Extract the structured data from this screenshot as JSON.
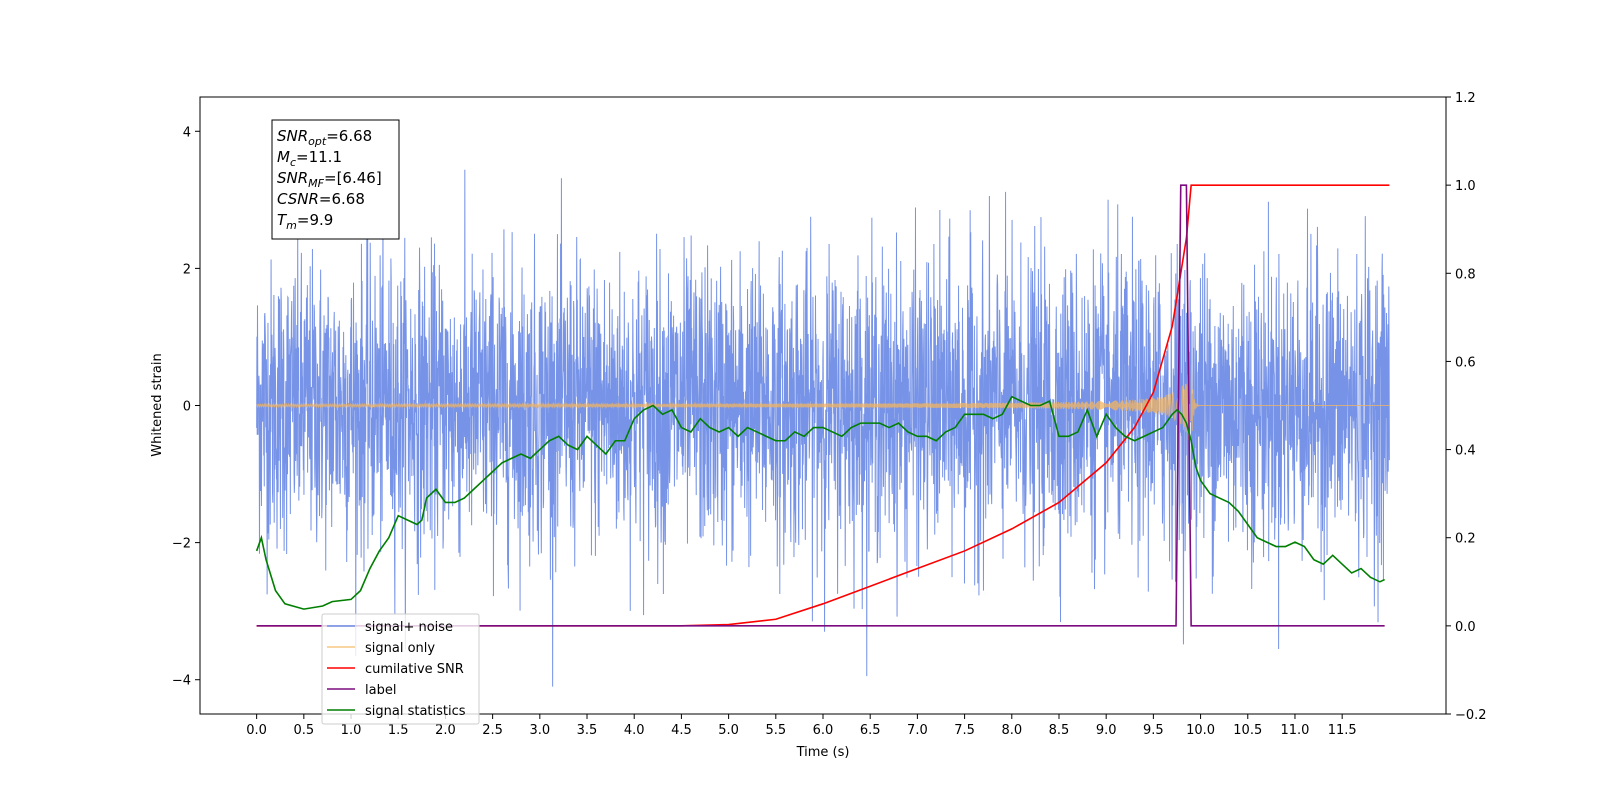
{
  "chart_data": {
    "type": "line",
    "xlabel": "Time (s)",
    "ylabel": "Whitened strain",
    "xlim": [
      -0.6,
      12.6
    ],
    "ylim_left": [
      -4.5,
      4.5
    ],
    "ylim_right": [
      -0.2,
      1.2
    ],
    "x_ticks": [
      0.0,
      0.5,
      1.0,
      1.5,
      2.0,
      2.5,
      3.0,
      3.5,
      4.0,
      4.5,
      5.0,
      5.5,
      6.0,
      6.5,
      7.0,
      7.5,
      8.0,
      8.5,
      9.0,
      9.5,
      10.0,
      10.5,
      11.0,
      11.5
    ],
    "x_tick_labels": [
      "0.0",
      "0.5",
      "1.0",
      "1.5",
      "2.0",
      "2.5",
      "3.0",
      "3.5",
      "4.0",
      "4.5",
      "5.0",
      "5.5",
      "6.0",
      "6.5",
      "7.0",
      "7.5",
      "8.0",
      "8.5",
      "9.0",
      "9.5",
      "10.0",
      "10.5",
      "11.0",
      "11.5"
    ],
    "y_ticks_left": [
      -4,
      -2,
      0,
      2,
      4
    ],
    "y_tick_labels_left": [
      "−4",
      "−2",
      "0",
      "2",
      "4"
    ],
    "y_ticks_right": [
      -0.2,
      0.0,
      0.2,
      0.4,
      0.6,
      0.8,
      1.0,
      1.2
    ],
    "y_tick_labels_right": [
      "−0.2",
      "0.0",
      "0.2",
      "0.4",
      "0.6",
      "0.8",
      "1.0",
      "1.2"
    ],
    "legend_placement": "lower-left",
    "grid": false,
    "annotation": [
      {
        "main": "SNR",
        "sub": "opt",
        "rest": "=6.68"
      },
      {
        "main": "M",
        "sub": "c",
        "rest": "=11.1"
      },
      {
        "main": "SNR",
        "sub": "MF",
        "rest": "=[6.46]"
      },
      {
        "main": "CSNR",
        "sub": "",
        "rest": "=6.68"
      },
      {
        "main": "T",
        "sub": "m",
        "rest": "=9.9"
      }
    ],
    "series": [
      {
        "name": "signal+ noise",
        "axis": "left",
        "color": "#6f8de6",
        "style": "noise",
        "x_range": [
          0.0,
          12.0
        ],
        "y_range": [
          -4.1,
          4.1
        ],
        "envelope_peak_at": 9.9
      },
      {
        "name": "signal only",
        "axis": "left",
        "color": "#f4b45f",
        "style": "chirp",
        "x_range": [
          0.0,
          12.0
        ],
        "peak_time": 9.9,
        "peak_amplitude": 0.75
      },
      {
        "name": "cumilative SNR",
        "axis": "right",
        "color": "#ff0000",
        "x": [
          0.0,
          4.5,
          5.0,
          5.5,
          6.0,
          6.5,
          7.0,
          7.5,
          8.0,
          8.5,
          9.0,
          9.3,
          9.5,
          9.7,
          9.85,
          9.9,
          10.0,
          12.0
        ],
        "y": [
          0.0,
          0.0,
          0.003,
          0.015,
          0.05,
          0.09,
          0.13,
          0.17,
          0.22,
          0.28,
          0.37,
          0.45,
          0.53,
          0.68,
          0.88,
          1.0,
          1.0,
          1.0
        ]
      },
      {
        "name": "label",
        "axis": "right",
        "color": "#7b0b7f",
        "x": [
          0.0,
          9.74,
          9.79,
          9.85,
          9.9,
          11.95
        ],
        "y": [
          0.0,
          0.0,
          1.0,
          1.0,
          0.0,
          0.0
        ]
      },
      {
        "name": "signal statistics",
        "axis": "right",
        "color": "#007f00",
        "x": [
          0.0,
          0.05,
          0.1,
          0.2,
          0.3,
          0.5,
          0.7,
          0.8,
          1.0,
          1.1,
          1.2,
          1.3,
          1.4,
          1.5,
          1.6,
          1.7,
          1.75,
          1.8,
          1.9,
          2.0,
          2.1,
          2.2,
          2.3,
          2.4,
          2.5,
          2.6,
          2.7,
          2.8,
          2.9,
          3.0,
          3.1,
          3.2,
          3.3,
          3.4,
          3.5,
          3.6,
          3.7,
          3.8,
          3.9,
          4.0,
          4.1,
          4.2,
          4.3,
          4.4,
          4.5,
          4.6,
          4.7,
          4.8,
          4.9,
          5.0,
          5.1,
          5.2,
          5.3,
          5.4,
          5.5,
          5.6,
          5.7,
          5.8,
          5.9,
          6.0,
          6.1,
          6.2,
          6.3,
          6.4,
          6.5,
          6.6,
          6.7,
          6.8,
          6.9,
          7.0,
          7.1,
          7.2,
          7.3,
          7.4,
          7.5,
          7.6,
          7.7,
          7.8,
          7.9,
          8.0,
          8.1,
          8.2,
          8.3,
          8.4,
          8.5,
          8.6,
          8.7,
          8.8,
          8.9,
          9.0,
          9.1,
          9.2,
          9.3,
          9.4,
          9.5,
          9.6,
          9.7,
          9.75,
          9.8,
          9.85,
          9.9,
          9.95,
          10.0,
          10.1,
          10.2,
          10.3,
          10.4,
          10.5,
          10.6,
          10.7,
          10.8,
          10.9,
          11.0,
          11.1,
          11.2,
          11.3,
          11.4,
          11.5,
          11.6,
          11.7,
          11.8,
          11.9,
          11.95
        ],
        "y": [
          0.17,
          0.2,
          0.15,
          0.08,
          0.05,
          0.038,
          0.045,
          0.055,
          0.06,
          0.08,
          0.13,
          0.17,
          0.2,
          0.25,
          0.24,
          0.23,
          0.24,
          0.29,
          0.31,
          0.28,
          0.28,
          0.29,
          0.31,
          0.33,
          0.35,
          0.37,
          0.38,
          0.39,
          0.38,
          0.4,
          0.42,
          0.43,
          0.41,
          0.4,
          0.43,
          0.41,
          0.39,
          0.42,
          0.42,
          0.47,
          0.49,
          0.5,
          0.48,
          0.49,
          0.45,
          0.44,
          0.47,
          0.45,
          0.44,
          0.45,
          0.43,
          0.45,
          0.44,
          0.43,
          0.42,
          0.42,
          0.44,
          0.43,
          0.45,
          0.45,
          0.44,
          0.43,
          0.45,
          0.46,
          0.46,
          0.46,
          0.45,
          0.46,
          0.44,
          0.43,
          0.43,
          0.42,
          0.44,
          0.45,
          0.48,
          0.48,
          0.48,
          0.47,
          0.48,
          0.52,
          0.51,
          0.5,
          0.5,
          0.51,
          0.43,
          0.43,
          0.44,
          0.49,
          0.43,
          0.48,
          0.45,
          0.43,
          0.42,
          0.43,
          0.44,
          0.45,
          0.48,
          0.49,
          0.48,
          0.46,
          0.42,
          0.36,
          0.33,
          0.3,
          0.29,
          0.28,
          0.26,
          0.23,
          0.2,
          0.19,
          0.18,
          0.18,
          0.19,
          0.18,
          0.15,
          0.14,
          0.16,
          0.14,
          0.12,
          0.13,
          0.11,
          0.1,
          0.105
        ]
      }
    ]
  }
}
